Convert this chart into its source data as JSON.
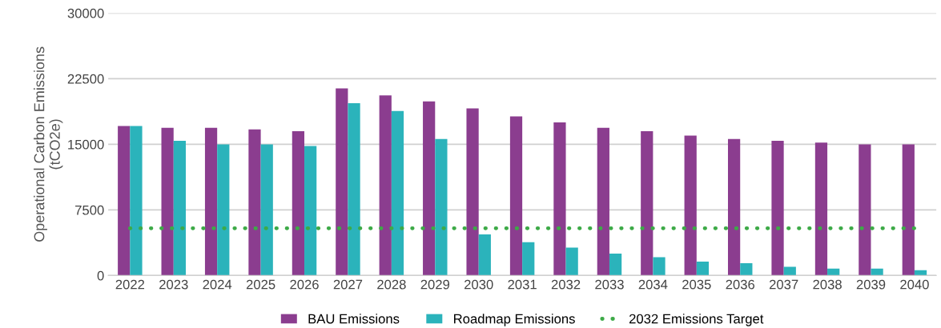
{
  "chart_data": {
    "type": "bar",
    "ylabel": "Operational Carbon Emissions\n(tCO2e)",
    "categories": [
      "2022",
      "2023",
      "2024",
      "2025",
      "2026",
      "2027",
      "2028",
      "2029",
      "2030",
      "2031",
      "2032",
      "2033",
      "2034",
      "2035",
      "2036",
      "2037",
      "2038",
      "2039",
      "2040"
    ],
    "series": [
      {
        "name": "BAU Emissions",
        "color": "#8b3d8f",
        "values": [
          17100,
          16900,
          16900,
          16700,
          16500,
          21400,
          20600,
          19900,
          19100,
          18200,
          17500,
          16900,
          16500,
          16000,
          15600,
          15400,
          15200,
          15000,
          15000
        ]
      },
      {
        "name": "Roadmap Emissions",
        "color": "#2bb3bb",
        "values": [
          17100,
          15400,
          15000,
          15000,
          14800,
          19700,
          18800,
          15600,
          4700,
          3800,
          3200,
          2500,
          2100,
          1600,
          1400,
          1000,
          800,
          800,
          600
        ]
      },
      {
        "name": "2032 Emissions Target",
        "color": "#3daa47",
        "type": "line",
        "line_style": "dotted",
        "values": [
          5400,
          5400,
          5400,
          5400,
          5400,
          5400,
          5400,
          5400,
          5400,
          5400,
          5400,
          5400,
          5400,
          5400,
          5400,
          5400,
          5400,
          5400,
          5400
        ]
      }
    ],
    "ylim": [
      0,
      30000
    ],
    "yticks": [
      0,
      7500,
      15000,
      22500,
      30000
    ],
    "grid": "y",
    "legend": "bottom"
  }
}
